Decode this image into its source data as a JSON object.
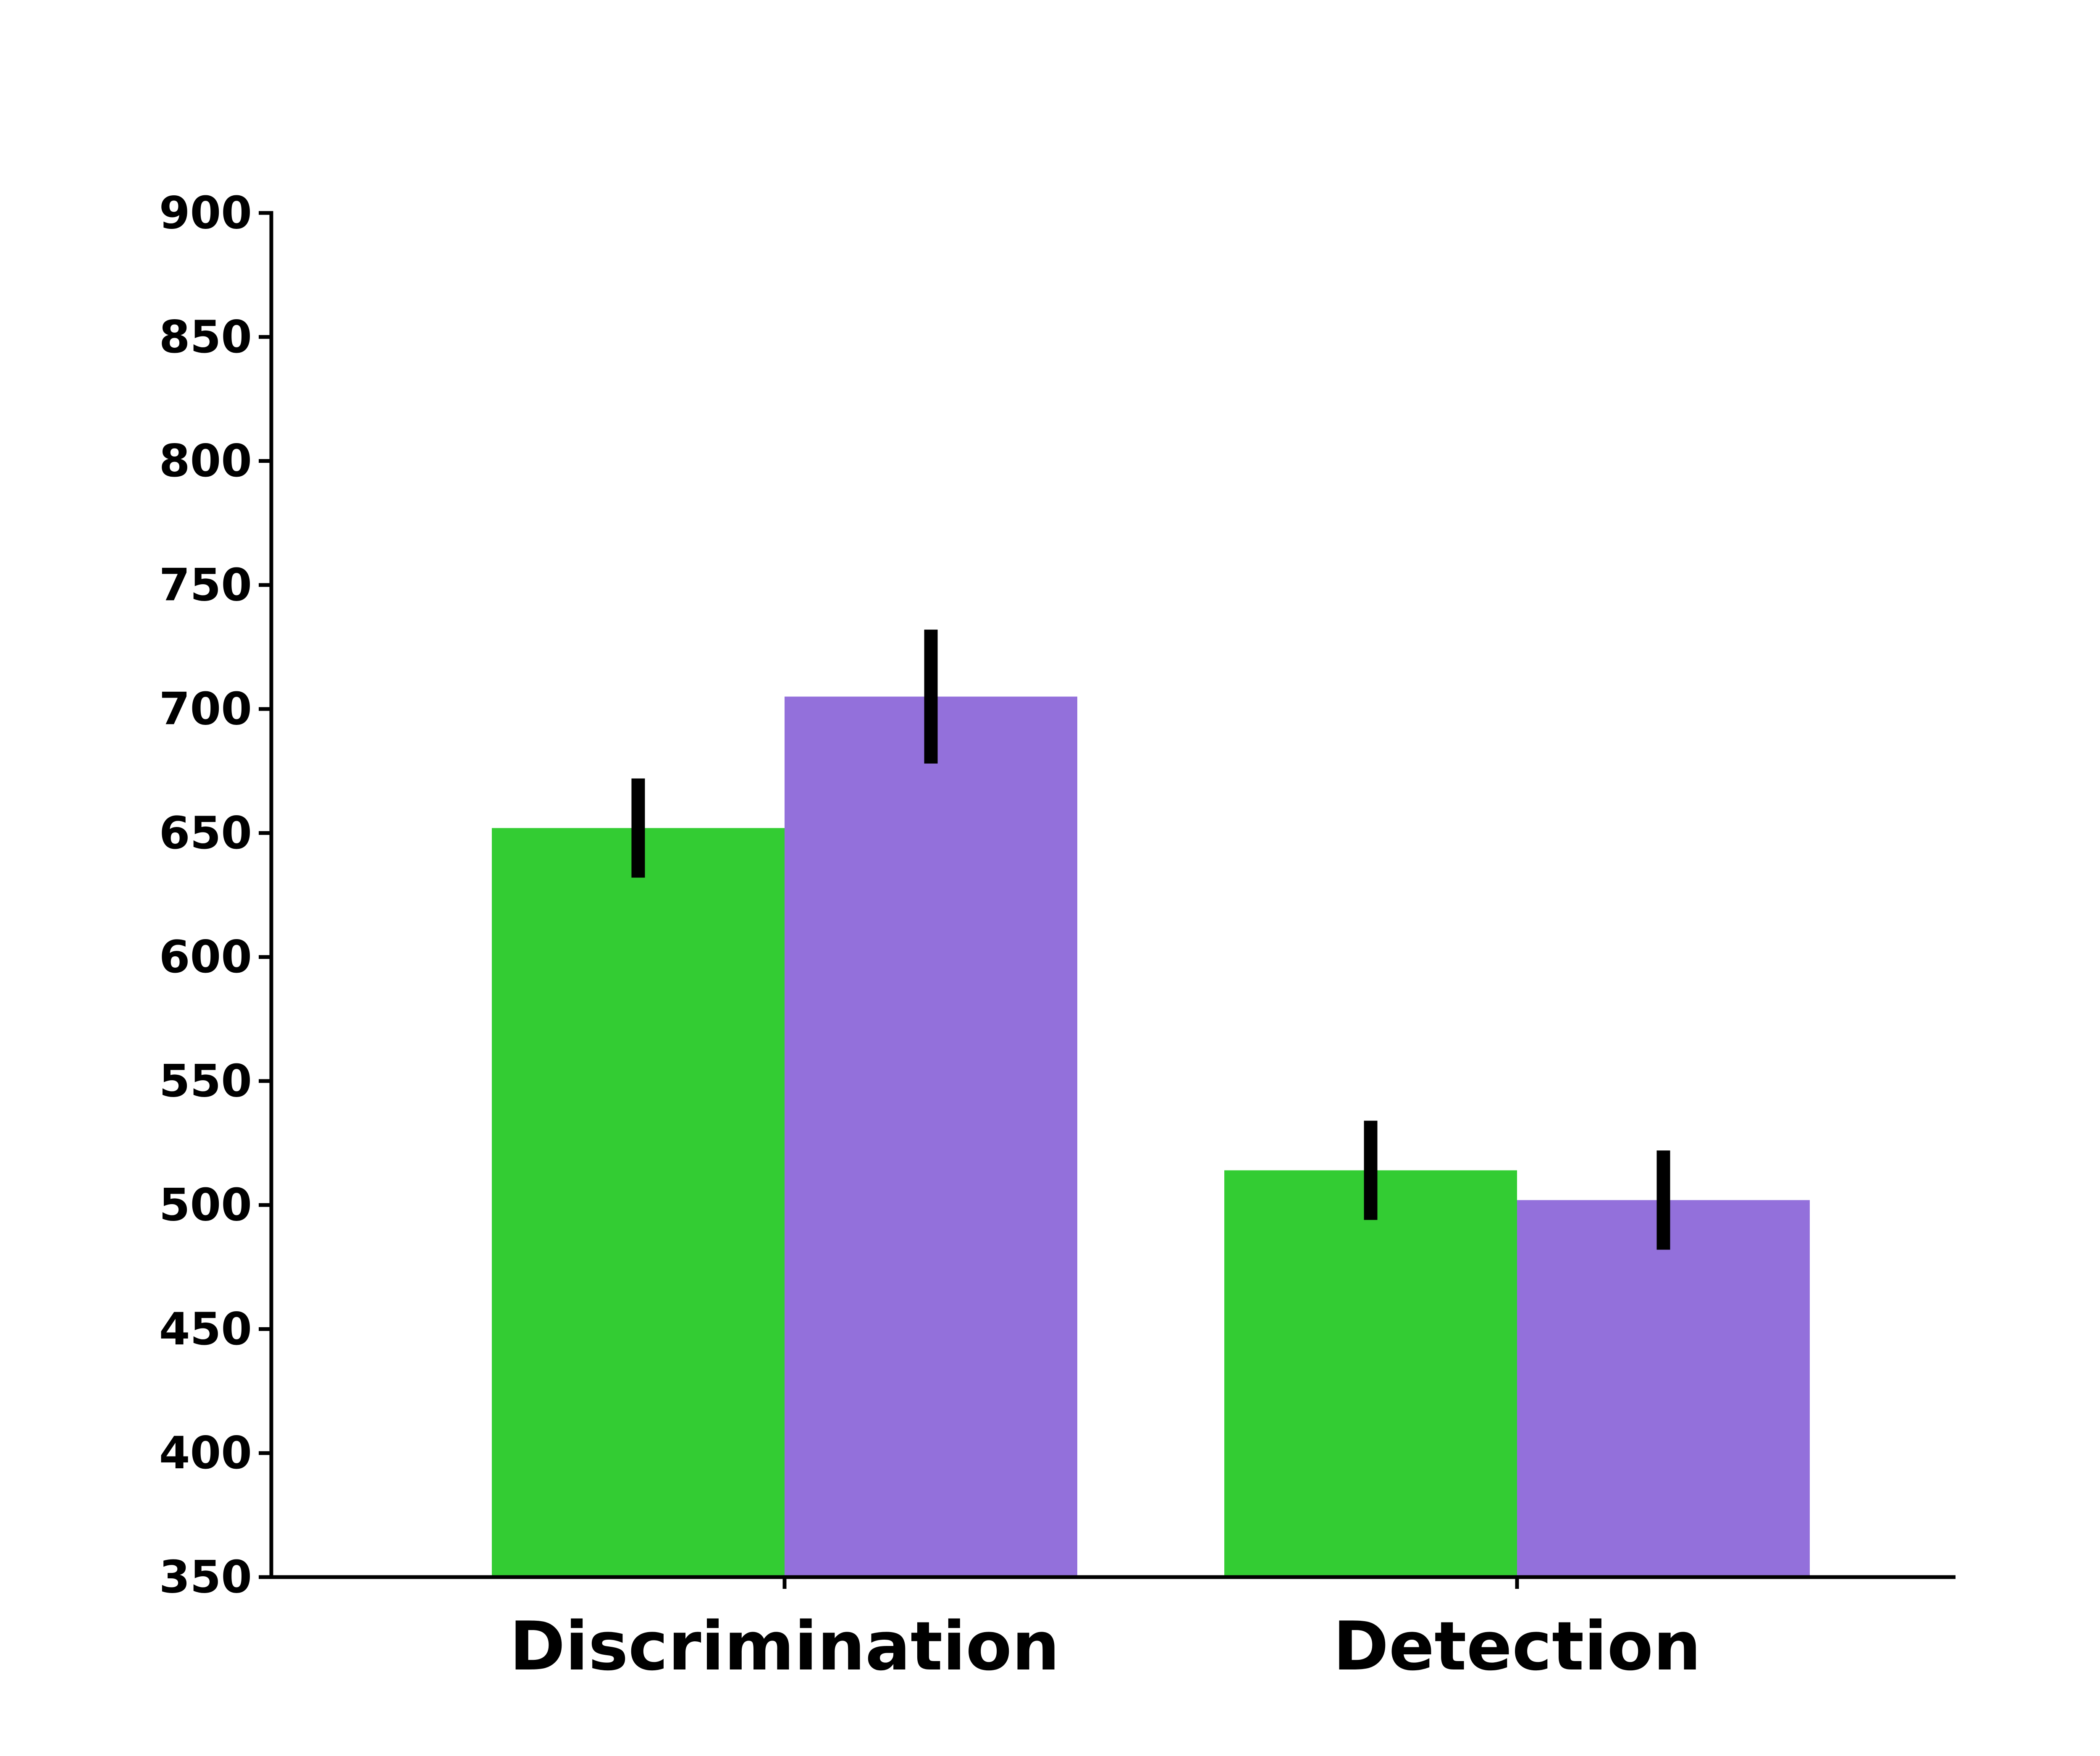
{
  "chart_data": {
    "type": "bar",
    "title": "",
    "xlabel": "",
    "ylabel": "",
    "ylim": [
      350,
      900
    ],
    "yticks": [
      350,
      400,
      450,
      500,
      550,
      600,
      650,
      700,
      750,
      800,
      850,
      900
    ],
    "categories": [
      "Discrimination",
      "Detection"
    ],
    "series": [
      {
        "values": [
          652,
          514
        ],
        "errors": [
          20,
          20
        ],
        "color": "#33cc33"
      },
      {
        "values": [
          705,
          502
        ],
        "errors": [
          27,
          20
        ],
        "color": "#9370db"
      }
    ],
    "grid": false,
    "legend": "none",
    "error_bar_color": "#000000",
    "axis_color": "#000000"
  }
}
